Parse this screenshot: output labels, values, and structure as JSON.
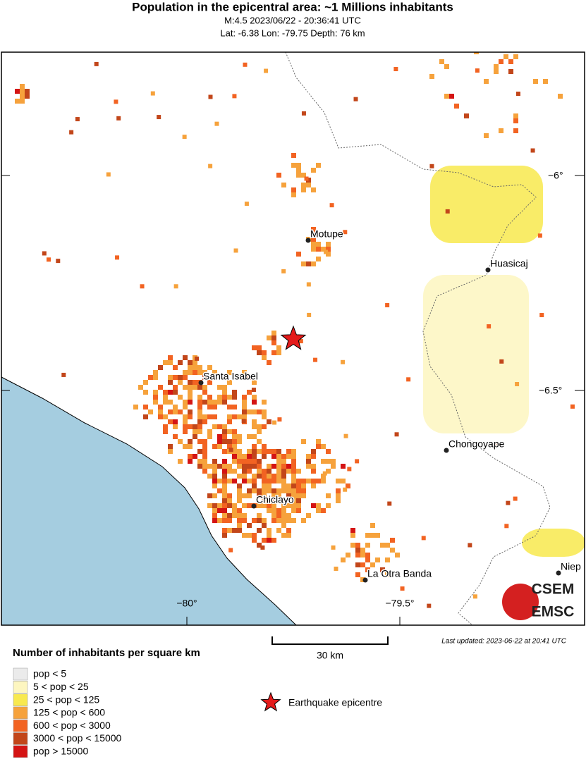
{
  "header": {
    "title": "Population in the epicentral area: ~1 Millions inhabitants",
    "subtitle": "M:4.5 2023/06/22 - 20:36:41 UTC",
    "location": "Lat: -6.38 Lon: -79.75 Depth: 76 km"
  },
  "map": {
    "lat_labels": [
      "−6°",
      "−6.5°"
    ],
    "lon_labels": [
      "−80°",
      "−79.5°"
    ],
    "places": [
      {
        "label": "Motupe"
      },
      {
        "label": "Huasicaj"
      },
      {
        "label": "Santa Isabel"
      },
      {
        "label": "Chongoyape"
      },
      {
        "label": "Chiclayo"
      },
      {
        "label": "La Otra Banda"
      },
      {
        "label": "Niep"
      }
    ],
    "logo": [
      "CSEM",
      "EMSC"
    ]
  },
  "scale": {
    "label": "30 km"
  },
  "updated": "Last updated: 2023-06-22 at 20:41 UTC",
  "legend": {
    "title": "Number of inhabitants per square km",
    "items": [
      {
        "label": "pop < 5",
        "color": "#ebebeb"
      },
      {
        "label": "5 < pop < 25",
        "color": "#fdf6c0"
      },
      {
        "label": "25 < pop < 125",
        "color": "#f8e94e"
      },
      {
        "label": "125 < pop < 600",
        "color": "#f6a23c"
      },
      {
        "label": "600 < pop < 3000",
        "color": "#f26322"
      },
      {
        "label": "3000 < pop < 15000",
        "color": "#c2461a"
      },
      {
        "label": "pop > 15000",
        "color": "#d41414"
      }
    ],
    "epicentre": "Earthquake epicentre"
  }
}
